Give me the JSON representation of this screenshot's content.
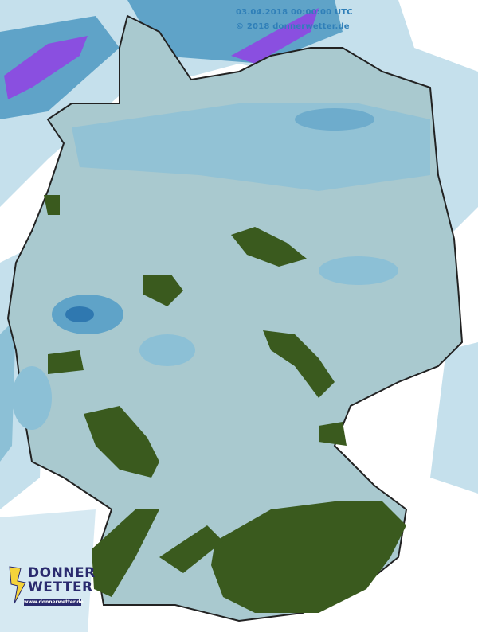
{
  "map": {
    "timestamp": "03.04.2018 00:00:00 UTC",
    "copyright": "© 2018 donnerwetter.de",
    "region": "Germany",
    "colors": {
      "land": "#a9c9cf",
      "light_precip": "#8cc0d6",
      "moderate_precip": "#5fa3c8",
      "heavy_precip": "#2f78b0",
      "very_heavy_precip": "#8a4fe0",
      "terrain_high": "#3a5a1e",
      "outside_precip": "#c5e0ec",
      "background": "#ffffff",
      "stamp_text": "#2f7fb8"
    }
  },
  "logo": {
    "line1": "DONNER",
    "line2": "WETTER",
    "url": "www.donnerwetter.de",
    "icon": "lightning-bolt-icon"
  }
}
